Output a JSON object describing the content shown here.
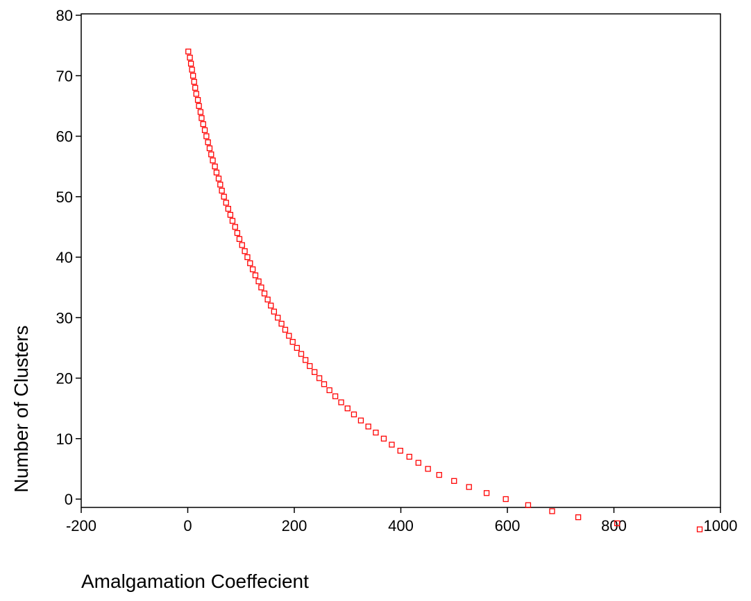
{
  "chart_data": {
    "type": "scatter",
    "title": "",
    "xlabel": "Amalgamation Coeffecient",
    "ylabel": "Number of Clusters",
    "xlim": [
      -200,
      1000
    ],
    "ylim": [
      0,
      80
    ],
    "x_ticks": [
      "-200",
      "0",
      "200",
      "400",
      "600",
      "800",
      "1000"
    ],
    "y_ticks": [
      "0",
      "10",
      "20",
      "30",
      "40",
      "50",
      "60",
      "70",
      "80"
    ],
    "grid": false,
    "legend": "none",
    "marker": "hollow-square",
    "marker_color": "#ff0000",
    "series": [
      {
        "x": [
          1,
          4,
          6,
          8,
          10,
          12,
          14,
          16,
          19,
          21,
          24,
          26,
          29,
          32,
          35,
          38,
          41,
          44,
          47,
          51,
          54,
          58,
          61,
          64,
          68,
          72,
          76,
          80,
          84,
          89,
          93,
          97,
          102,
          107,
          112,
          117,
          122,
          127,
          133,
          138,
          144,
          150,
          156,
          162,
          169,
          176,
          183,
          190,
          197,
          205,
          213,
          221,
          229,
          238,
          247,
          256,
          266,
          277,
          288,
          300,
          312,
          325,
          339,
          353,
          368,
          383,
          399,
          416,
          433,
          451,
          472,
          500,
          528,
          561,
          597,
          639,
          684,
          733,
          806,
          961
        ],
        "y": [
          74,
          73,
          72,
          71,
          70,
          69,
          68,
          67,
          66,
          65,
          64,
          63,
          62,
          61,
          60,
          59,
          58,
          57,
          56,
          55,
          54,
          53,
          52,
          51,
          50,
          49,
          48,
          47,
          46,
          45,
          44,
          43,
          42,
          41,
          40,
          39,
          38,
          37,
          36,
          35,
          34,
          33,
          32,
          31,
          30,
          29,
          28,
          27,
          26,
          25,
          24,
          23,
          22,
          21,
          20,
          19,
          18,
          17,
          16,
          15,
          14,
          13,
          12,
          11,
          10,
          9,
          8,
          7,
          6,
          5,
          4,
          3,
          2,
          1,
          0,
          -1,
          -2,
          -3,
          -4,
          -5
        ]
      }
    ]
  }
}
